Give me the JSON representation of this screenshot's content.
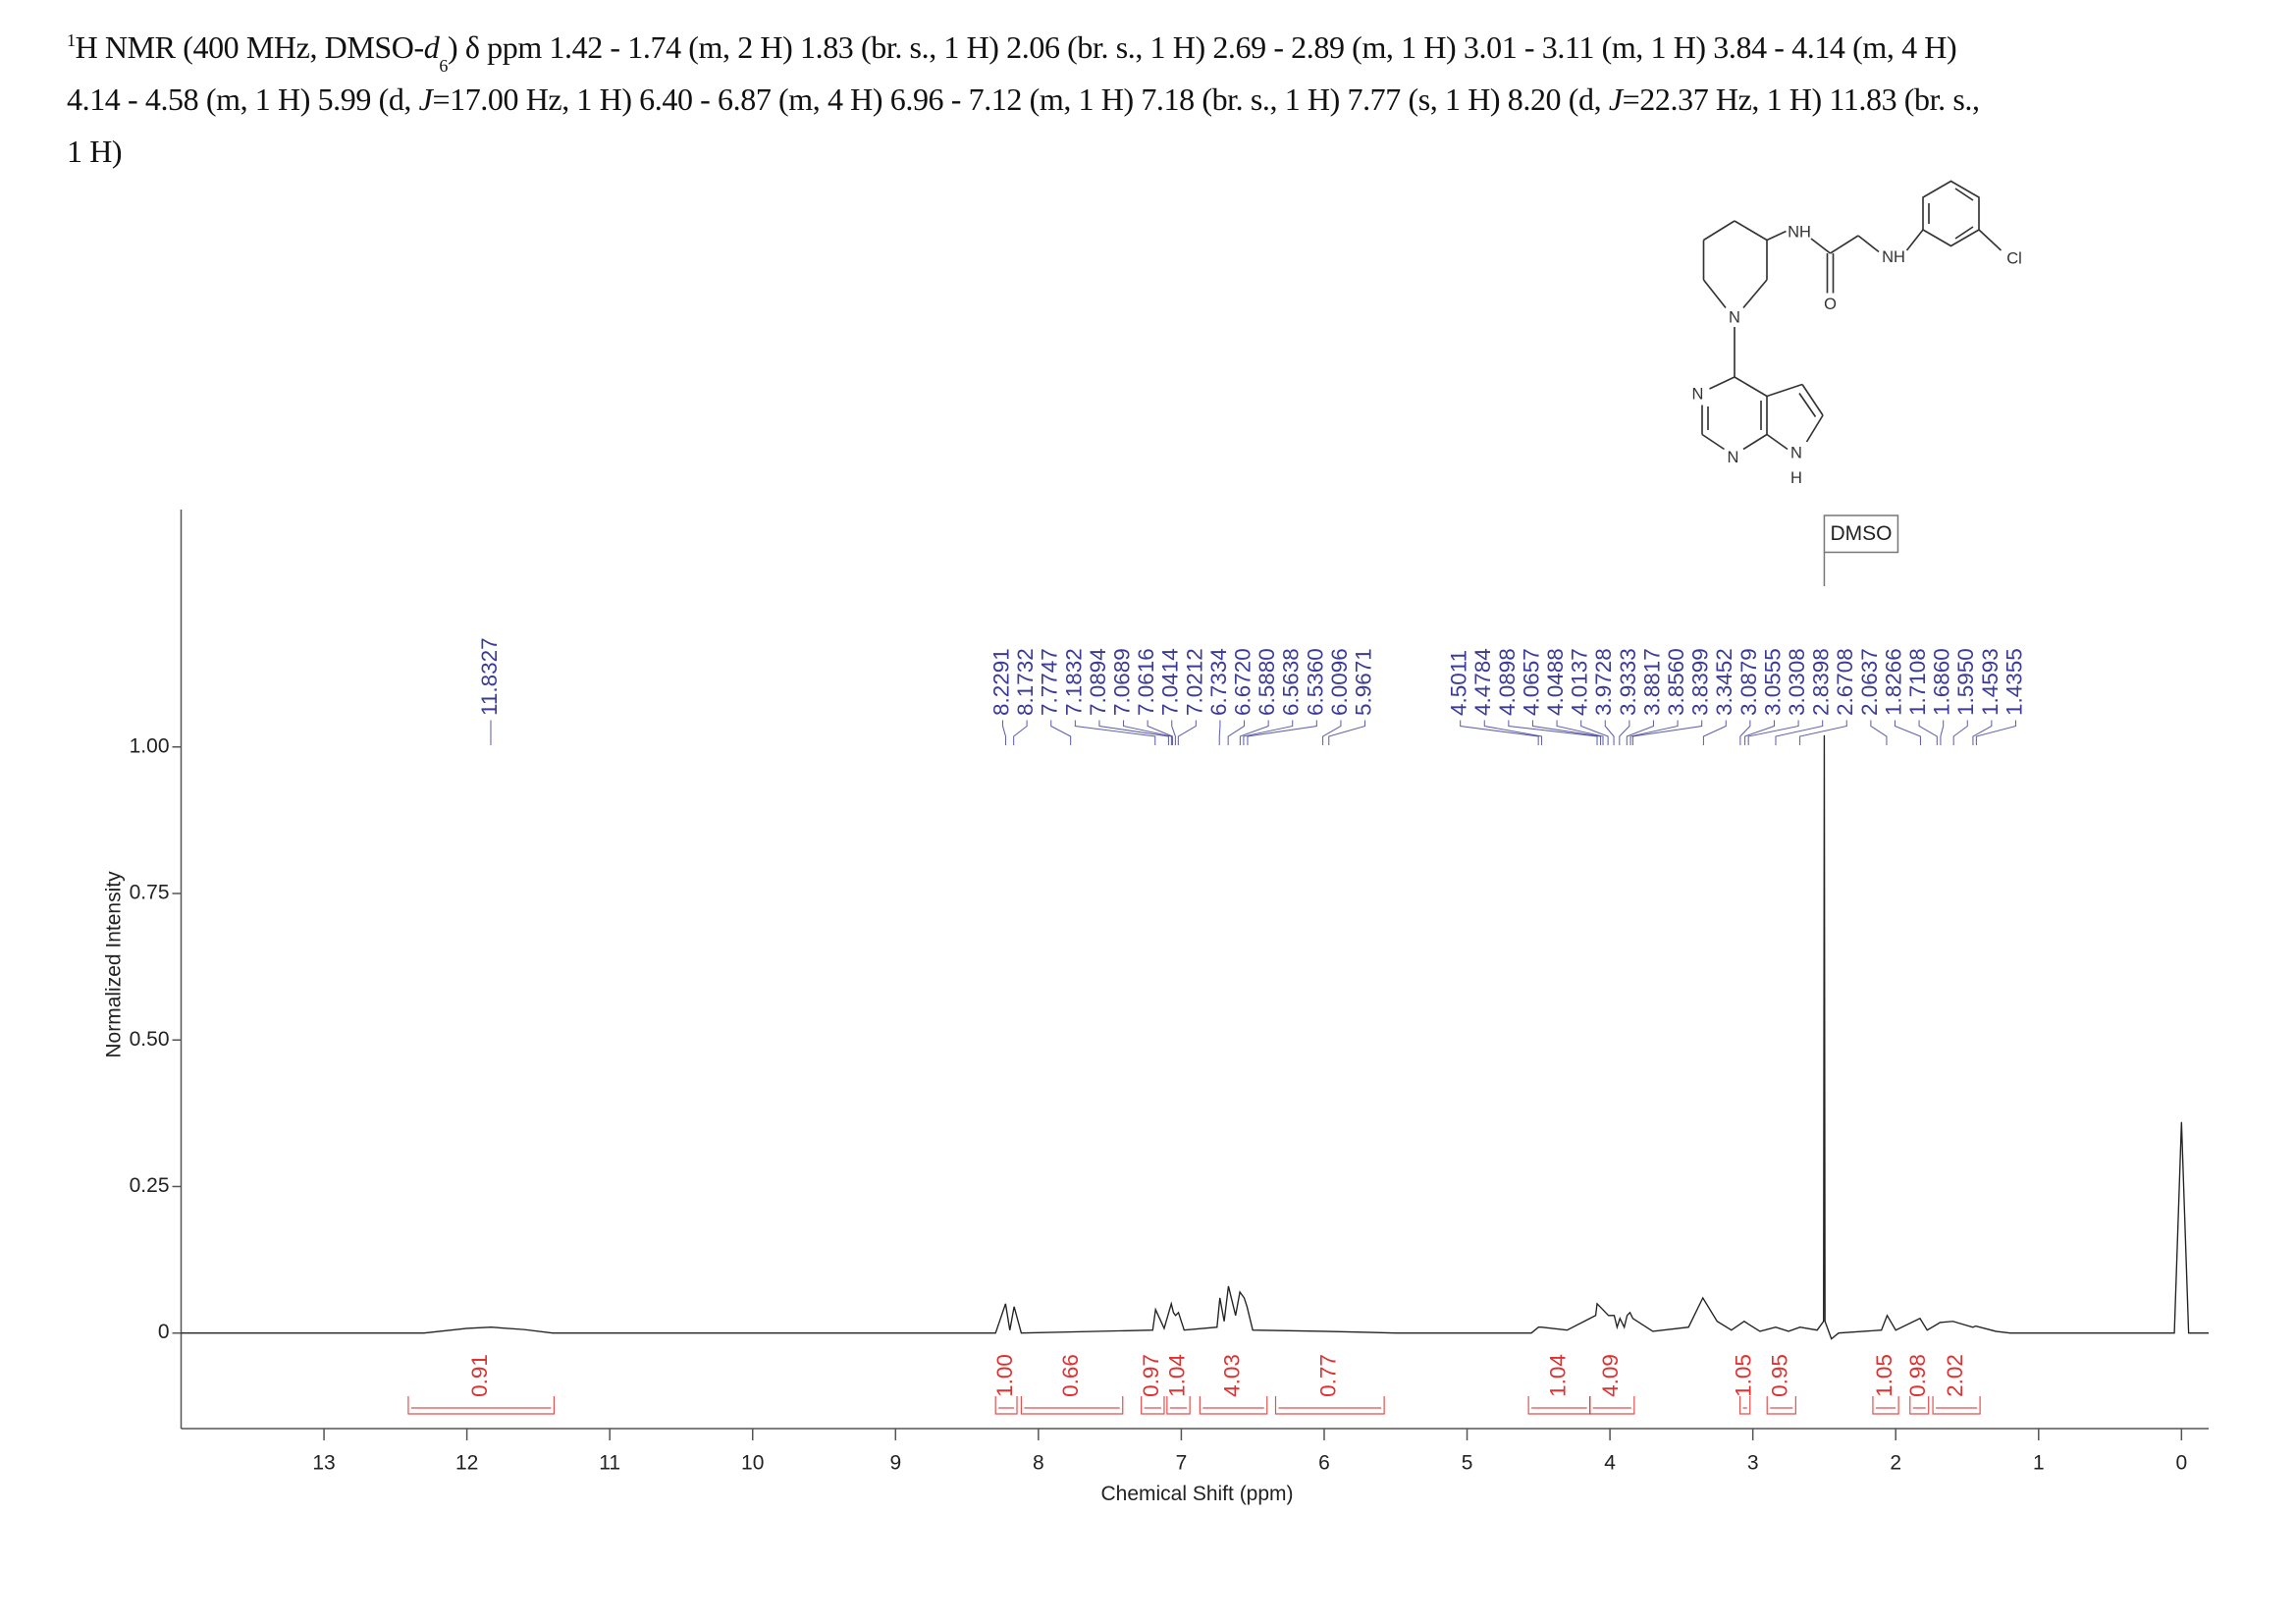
{
  "header": {
    "sup": "1",
    "t1": "H NMR (400 MHz, DMSO-",
    "d": "d",
    "sub": "6",
    "t2": ") δ ppm 1.42 - 1.74 (m, 2 H) 1.83 (br. s., 1 H) 2.06 (br. s., 1 H) 2.69 - 2.89 (m, 1 H) 3.01 - 3.11 (m, 1 H) 3.84 - 4.14 (m, 4 H)",
    "t3": "4.14 - 4.58 (m, 1 H) 5.99 (d, ",
    "j1": "J",
    "t4": "=17.00 Hz, 1 H) 6.40 - 6.87 (m, 4 H) 6.96 - 7.12 (m, 1 H) 7.18 (br. s., 1 H) 7.77 (s, 1 H) 8.20 (d, ",
    "j2": "J",
    "t5": "=22.37 Hz, 1 H) 11.83 (br. s.,",
    "t6": "1 H)"
  },
  "structure": {
    "atoms": [
      "NH",
      "O",
      "NH",
      "Cl",
      "N",
      "N",
      "N",
      "N",
      "H"
    ]
  },
  "chart_data": {
    "type": "nmr",
    "xlabel": "Chemical Shift (ppm)",
    "ylabel": "Normalized Intensity",
    "xlim": [
      14,
      -0.19
    ],
    "ylim": [
      -0.163,
      1.405
    ],
    "xticks": [
      13,
      12,
      11,
      10,
      9,
      8,
      7,
      6,
      5,
      4,
      3,
      2,
      1,
      0
    ],
    "yticks": [
      {
        "value": 1,
        "label": "1.00"
      },
      0.75,
      {
        "value": 0.5,
        "label": "0.50"
      },
      0.25,
      0
    ],
    "spectrum": {
      "color": "#222222",
      "x": [
        14.0,
        12.3,
        12.0,
        11.83,
        11.6,
        11.4,
        8.3,
        8.23,
        8.2,
        8.17,
        8.12,
        7.2,
        7.18,
        7.12,
        7.07,
        7.055,
        7.04,
        7.02,
        6.98,
        6.75,
        6.73,
        6.7,
        6.67,
        6.62,
        6.59,
        6.56,
        6.54,
        6.5,
        6.0,
        5.5,
        4.55,
        4.5,
        4.48,
        4.3,
        4.1,
        4.09,
        4.07,
        4.05,
        4.01,
        3.97,
        3.95,
        3.93,
        3.9,
        3.88,
        3.86,
        3.84,
        3.7,
        3.45,
        3.35,
        3.25,
        3.15,
        3.09,
        3.06,
        3.03,
        2.95,
        2.84,
        2.75,
        2.67,
        2.55,
        2.505,
        2.5,
        2.495,
        2.45,
        2.4,
        2.1,
        2.06,
        2.0,
        1.83,
        1.78,
        1.71,
        1.69,
        1.6,
        1.46,
        1.44,
        1.3,
        1.2,
        0.05,
        0.0,
        -0.05,
        -0.19
      ],
      "y": [
        0,
        0,
        0.008,
        0.01,
        0.006,
        0,
        0,
        0.05,
        0.005,
        0.045,
        0,
        0.005,
        0.04,
        0.008,
        0.05,
        0.035,
        0.03,
        0.035,
        0.005,
        0.01,
        0.06,
        0.02,
        0.08,
        0.03,
        0.07,
        0.06,
        0.045,
        0.005,
        0.003,
        0,
        0,
        0.01,
        0.01,
        0.005,
        0.03,
        0.05,
        0.045,
        0.04,
        0.03,
        0.03,
        0.01,
        0.025,
        0.01,
        0.03,
        0.035,
        0.025,
        0.003,
        0.01,
        0.06,
        0.02,
        0.005,
        0.015,
        0.02,
        0.015,
        0.003,
        0.01,
        0.003,
        0.01,
        0.005,
        0.02,
        1.02,
        0.02,
        -0.01,
        0,
        0.005,
        0.03,
        0.005,
        0.025,
        0.005,
        0.015,
        0.018,
        0.02,
        0.01,
        0.012,
        0.003,
        0,
        0,
        0.36,
        0,
        0
      ]
    },
    "peaks": {
      "color": "#3b3b96",
      "values": [
        11.8327,
        8.2291,
        8.1732,
        7.7747,
        7.1832,
        7.0894,
        7.0689,
        7.0616,
        7.0414,
        7.0212,
        6.7334,
        6.672,
        6.588,
        6.5638,
        6.536,
        6.0096,
        5.9671,
        4.5011,
        4.4784,
        4.0898,
        4.0657,
        4.0488,
        4.0137,
        3.9728,
        3.9333,
        3.8817,
        3.856,
        3.8399,
        3.3452,
        3.0879,
        3.0555,
        3.0308,
        2.8398,
        2.6708,
        2.0637,
        1.8266,
        1.7108,
        1.686,
        1.595,
        1.4593,
        1.4355
      ],
      "value_labels": [
        "11.8327",
        "8.2291",
        "8.1732",
        "7.7747",
        "7.1832",
        "7.0894",
        "7.0689",
        "7.0616",
        "7.0414",
        "7.0212",
        "6.7334",
        "6.6720",
        "6.5880",
        "6.5638",
        "6.5360",
        "6.0096",
        "5.9671",
        "4.5011",
        "4.4784",
        "4.0898",
        "4.0657",
        "4.0488",
        "4.0137",
        "3.9728",
        "3.9333",
        "3.8817",
        "3.8560",
        "3.8399",
        "3.3452",
        "3.0879",
        "3.0555",
        "3.0308",
        "2.8398",
        "2.6708",
        "2.0637",
        "1.8266",
        "1.7108",
        "1.6860",
        "1.5950",
        "1.4593",
        "1.4355"
      ]
    },
    "integrals": {
      "color": "#e03030",
      "ranges": [
        [
          12.41,
          11.39
        ],
        [
          8.3,
          8.15
        ],
        [
          8.12,
          7.41
        ],
        [
          7.28,
          7.12
        ],
        [
          7.1,
          6.94
        ],
        [
          6.87,
          6.4
        ],
        [
          6.34,
          5.58
        ],
        [
          4.57,
          4.14
        ],
        [
          4.14,
          3.83
        ],
        [
          3.09,
          3.02
        ],
        [
          2.9,
          2.7
        ],
        [
          2.16,
          1.98
        ],
        [
          1.9,
          1.77
        ],
        [
          1.74,
          1.41
        ]
      ],
      "values": [
        0.91,
        1,
        0.66,
        0.97,
        1.04,
        4.03,
        0.77,
        1.04,
        4.09,
        1.05,
        0.95,
        1.05,
        0.98,
        2.02
      ],
      "value_labels": [
        "0.91",
        "1.00",
        "0.66",
        "0.97",
        "1.04",
        "4.03",
        "0.77",
        "1.04",
        "4.09",
        "1.05",
        "0.95",
        "1.05",
        "0.98",
        "2.02"
      ]
    },
    "annotation": {
      "text": "DMSO",
      "x": 2.5
    }
  }
}
